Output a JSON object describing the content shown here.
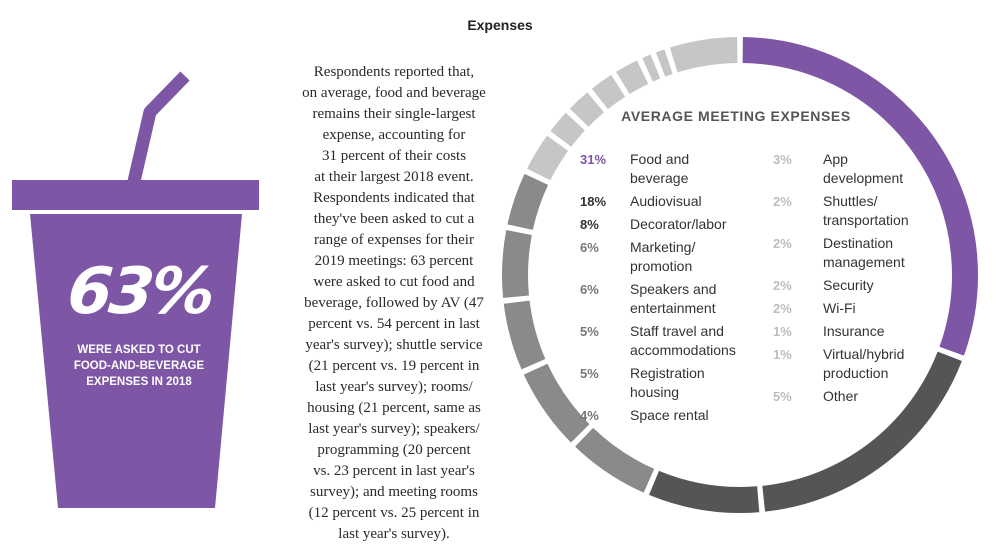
{
  "title": "Expenses",
  "cup": {
    "big": "63%",
    "caption": [
      "WERE ASKED TO CUT",
      "FOOD-AND-BEVERAGE",
      "EXPENSES IN 2018"
    ]
  },
  "paragraph": [
    "Respondents reported that,",
    "on average, food and beverage",
    "remains their single-largest",
    "expense, accounting for",
    "31 percent of their costs",
    "at their largest 2018 event.",
    "Respondents indicated that",
    "they've been asked to cut a",
    "range of expenses for their",
    "2019 meetings: 63 percent",
    "were asked to cut food and",
    "beverage, followed by AV (47",
    "percent vs. 54 percent in last",
    "year's survey); shuttle service",
    "(21 percent vs. 19 percent in",
    "last year's survey); rooms/",
    "housing (21 percent, same as",
    "last year's survey); speakers/",
    "programming (20 percent",
    "vs. 23 percent in last year's",
    "survey); and meeting rooms",
    "(12 percent vs. 25 percent in",
    "last year's survey)."
  ],
  "colors": {
    "purple": "#7d56a5",
    "dark": "#555555",
    "mid": "#8a8a8a",
    "light": "#c6c6c6",
    "text_dark": "#333333",
    "text_light": "#bdbdbd"
  },
  "chart_data": {
    "type": "pie",
    "title": "AVERAGE MEETING EXPENSES",
    "donut_segments": [
      {
        "shade": "purple",
        "value": 31
      },
      {
        "shade": "dark",
        "value": 18
      },
      {
        "shade": "dark",
        "value": 8
      },
      {
        "shade": "mid",
        "value": 6
      },
      {
        "shade": "mid",
        "value": 6
      },
      {
        "shade": "mid",
        "value": 5
      },
      {
        "shade": "mid",
        "value": 5
      },
      {
        "shade": "mid",
        "value": 4
      },
      {
        "shade": "light",
        "value": 3
      },
      {
        "shade": "light",
        "value": 2
      },
      {
        "shade": "light",
        "value": 2
      },
      {
        "shade": "light",
        "value": 2
      },
      {
        "shade": "light",
        "value": 2
      },
      {
        "shade": "light",
        "value": 1
      },
      {
        "shade": "light",
        "value": 1
      },
      {
        "shade": "light",
        "value": 5
      }
    ],
    "legend_left": [
      {
        "pct": "31%",
        "color": "#7d56a5",
        "lines": [
          "Food and",
          "beverage"
        ]
      },
      {
        "pct": "18%",
        "color": "#333333",
        "lines": [
          "Audiovisual"
        ]
      },
      {
        "pct": "8%",
        "color": "#333333",
        "lines": [
          "Decorator/labor"
        ]
      },
      {
        "pct": "6%",
        "color": "#777777",
        "lines": [
          "Marketing/",
          "promotion"
        ]
      },
      {
        "pct": "6%",
        "color": "#777777",
        "lines": [
          "Speakers and",
          "entertainment"
        ]
      },
      {
        "pct": "5%",
        "color": "#777777",
        "lines": [
          "Staff travel and",
          "accommodations"
        ]
      },
      {
        "pct": "5%",
        "color": "#777777",
        "lines": [
          "Registration",
          "housing"
        ]
      },
      {
        "pct": "4%",
        "color": "#777777",
        "lines": [
          "Space rental"
        ]
      }
    ],
    "legend_right": [
      {
        "pct": "3%",
        "color": "#bdbdbd",
        "lines": [
          "App",
          "development"
        ]
      },
      {
        "pct": "2%",
        "color": "#bdbdbd",
        "lines": [
          "Shuttles/",
          "transportation"
        ]
      },
      {
        "pct": "2%",
        "color": "#bdbdbd",
        "lines": [
          "Destination",
          "management"
        ]
      },
      {
        "pct": "2%",
        "color": "#bdbdbd",
        "lines": [
          "Security"
        ]
      },
      {
        "pct": "2%",
        "color": "#bdbdbd",
        "lines": [
          "Wi-Fi"
        ]
      },
      {
        "pct": "1%",
        "color": "#bdbdbd",
        "lines": [
          "Insurance"
        ]
      },
      {
        "pct": "1%",
        "color": "#bdbdbd",
        "lines": [
          "Virtual/hybrid",
          "production"
        ]
      },
      {
        "pct": "5%",
        "color": "#bdbdbd",
        "lines": [
          "Other"
        ]
      }
    ]
  }
}
